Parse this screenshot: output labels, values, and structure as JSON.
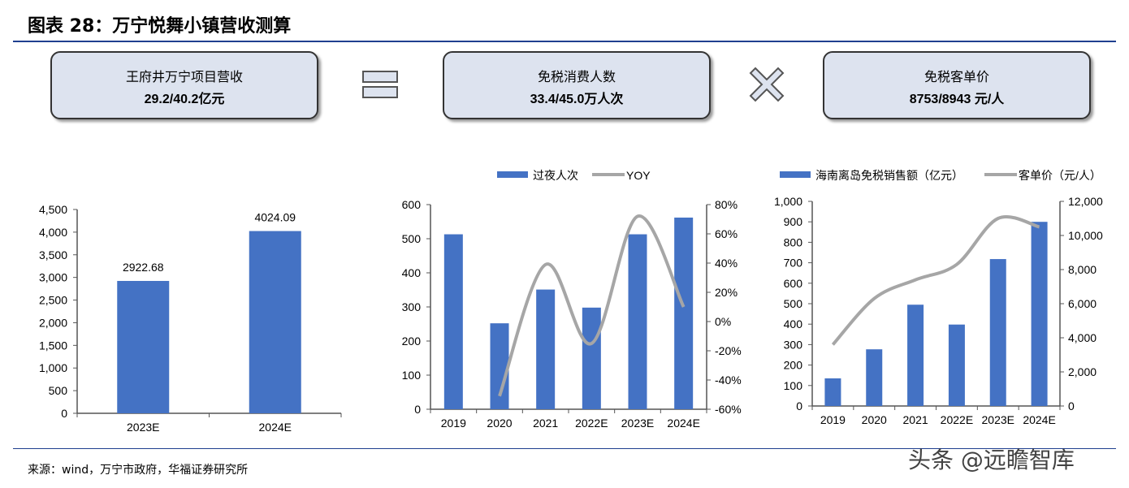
{
  "header": {
    "title": "图表 28：万宁悦舞小镇营收测算"
  },
  "formula": {
    "box1": {
      "label": "王府井万宁项目营收",
      "value": "29.2/40.2亿元"
    },
    "operator1": "equals-icon",
    "box2": {
      "label": "免税消费人数",
      "value": "33.4/45.0万人次"
    },
    "operator2": "multiply-icon",
    "box3": {
      "label": "免税客单价",
      "value": "8753/8943 元/人"
    }
  },
  "colors": {
    "bar": "#4472c4",
    "line": "#a6a6a6",
    "rule": "#1f3f8f"
  },
  "chart_data": [
    {
      "type": "bar",
      "categories": [
        "2023E",
        "2024E"
      ],
      "values": [
        2922.68,
        4024.09
      ],
      "data_labels": [
        "2922.68",
        "4024.09"
      ],
      "ylim": [
        0,
        4500
      ],
      "yticks": [
        "0",
        "500",
        "1,000",
        "1,500",
        "2,000",
        "2,500",
        "3,000",
        "3,500",
        "4,000",
        "4,500"
      ]
    },
    {
      "type": "bar+line",
      "categories": [
        "2019",
        "2020",
        "2021",
        "2022E",
        "2023E",
        "2024E"
      ],
      "series": [
        {
          "name": "过夜人次",
          "type": "bar",
          "axis": "left",
          "values": [
            513,
            252,
            351,
            298,
            513,
            562
          ]
        },
        {
          "name": "YOY",
          "type": "line",
          "axis": "right",
          "values": [
            null,
            -51,
            39,
            -15,
            72,
            10
          ]
        }
      ],
      "ylim": [
        0,
        600
      ],
      "yticks": [
        "0",
        "100",
        "200",
        "300",
        "400",
        "500",
        "600"
      ],
      "y2lim": [
        -60,
        80
      ],
      "y2ticks": [
        "-60%",
        "-40%",
        "-20%",
        "0%",
        "20%",
        "40%",
        "60%",
        "80%"
      ],
      "legend": "top"
    },
    {
      "type": "bar+line",
      "categories": [
        "2019",
        "2020",
        "2021",
        "2022E",
        "2023E",
        "2024E"
      ],
      "series": [
        {
          "name": "海南离岛免税销售额（亿元）",
          "type": "bar",
          "axis": "left",
          "values": [
            135,
            277,
            495,
            398,
            718,
            900
          ]
        },
        {
          "name": "客单价（元/人）",
          "type": "line",
          "axis": "right",
          "values": [
            3600,
            6300,
            7400,
            8300,
            11000,
            10500
          ]
        }
      ],
      "ylim": [
        0,
        1000
      ],
      "yticks": [
        "0",
        "100",
        "200",
        "300",
        "400",
        "500",
        "600",
        "700",
        "800",
        "900",
        "1,000"
      ],
      "y2lim": [
        0,
        12000
      ],
      "y2ticks": [
        "0",
        "2,000",
        "4,000",
        "6,000",
        "8,000",
        "10,000",
        "12,000"
      ],
      "legend": "top"
    }
  ],
  "footer": {
    "source": "来源：wind，万宁市政府，华福证券研究所",
    "watermark": "头条 @远瞻智库"
  }
}
